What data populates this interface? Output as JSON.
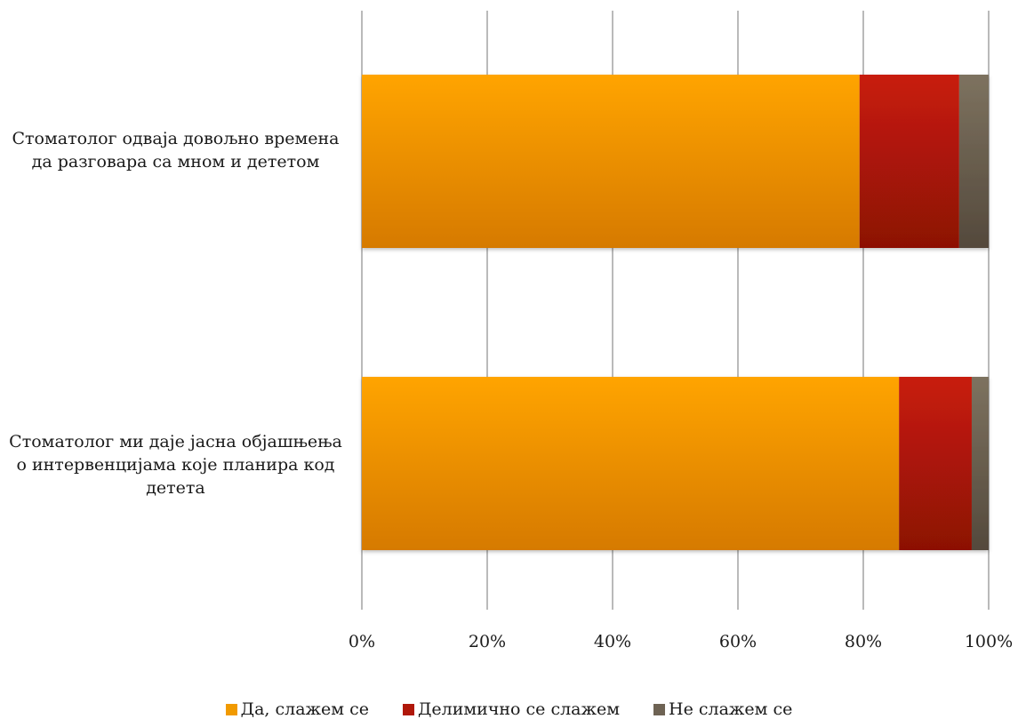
{
  "chart_data": {
    "type": "bar",
    "orientation": "horizontal",
    "stacked": "percent",
    "categories": [
      "Стоматолог одваја довољно времена да разговара са мном и дететом",
      "Стоматолог ми даје јасна објашњења о интервенцијама које планира код детета"
    ],
    "series": [
      {
        "name": "Да, слажем се",
        "values": [
          79.4,
          85.7
        ],
        "color": "#f19a00"
      },
      {
        "name": "Делимично се слажем",
        "values": [
          15.9,
          11.6
        ],
        "color": "#b0180a"
      },
      {
        "name": "Не слажем се",
        "values": [
          4.7,
          2.7
        ],
        "color": "#6e6354"
      }
    ],
    "xlim": [
      0,
      100
    ],
    "xticks": [
      "0%",
      "20%",
      "40%",
      "60%",
      "80%",
      "100%"
    ],
    "grid": true,
    "legend_position": "bottom"
  }
}
